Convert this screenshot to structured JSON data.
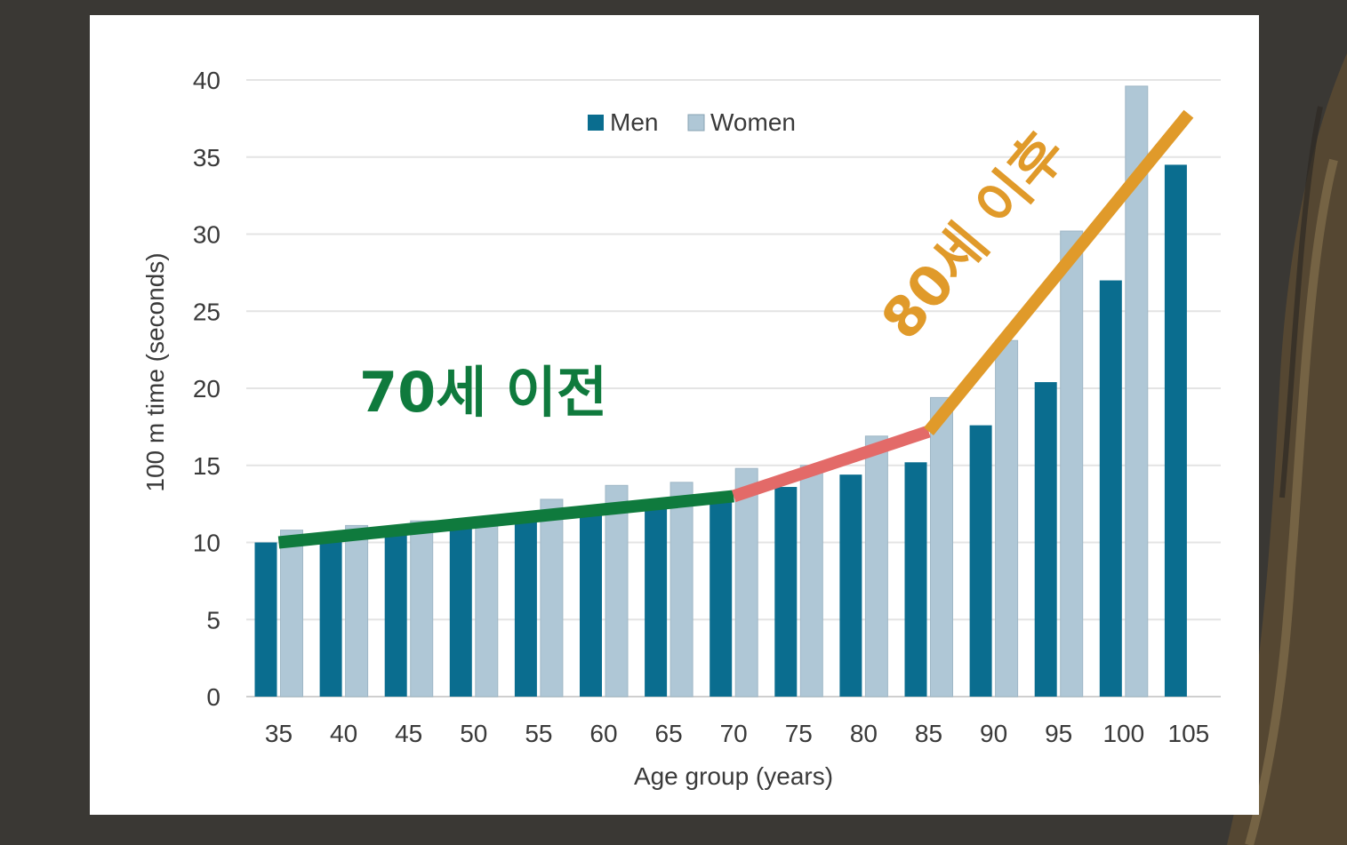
{
  "chart_data": {
    "type": "bar",
    "categories": [
      "35",
      "40",
      "45",
      "50",
      "55",
      "60",
      "65",
      "70",
      "75",
      "80",
      "85",
      "90",
      "95",
      "100",
      "105"
    ],
    "series": [
      {
        "name": "Men",
        "color": "#0a6d8f",
        "values": [
          10.0,
          10.4,
          10.9,
          11.3,
          11.8,
          12.3,
          12.6,
          13.1,
          13.6,
          14.4,
          15.2,
          17.6,
          20.4,
          27.0,
          34.5
        ]
      },
      {
        "name": "Women",
        "color": "#afc7d6",
        "values": [
          10.8,
          11.1,
          11.4,
          11.6,
          12.8,
          13.7,
          13.9,
          14.8,
          15.0,
          16.9,
          19.4,
          23.1,
          30.2,
          39.6,
          null
        ]
      }
    ],
    "xlabel": "Age group (years)",
    "ylabel": "100 m time (seconds)",
    "ylim": [
      0,
      40
    ],
    "yticks": [
      "0",
      "5",
      "10",
      "15",
      "20",
      "25",
      "30",
      "35",
      "40"
    ],
    "grid": true,
    "legend_position": "top-center",
    "annotations": [
      {
        "text": "70세 이전",
        "color": "#0f7a3d"
      },
      {
        "text": "80세 이후",
        "color": "#e09a2a"
      }
    ],
    "trend_lines": [
      {
        "color": "#0f7a3d",
        "points": [
          [
            35,
            10.0
          ],
          [
            70,
            13.0
          ]
        ]
      },
      {
        "color": "#e36a68",
        "points": [
          [
            70,
            13.0
          ],
          [
            85,
            17.2
          ]
        ]
      },
      {
        "color": "#e09a2a",
        "points": [
          [
            85,
            17.2
          ],
          [
            105,
            37.8
          ]
        ]
      }
    ]
  }
}
